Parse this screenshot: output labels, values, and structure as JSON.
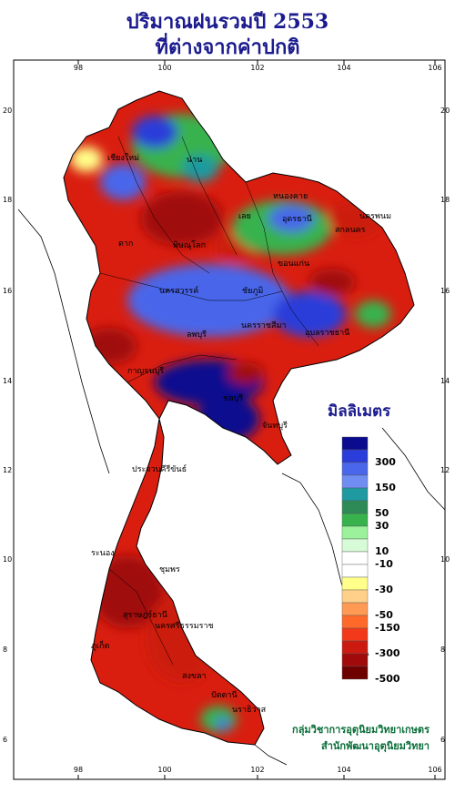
{
  "title": {
    "line1": "ปริมาณฝนรวมปี  2553",
    "line2": "ที่ต่างจากค่าปกติ"
  },
  "axes": {
    "x_ticks": [
      "98",
      "100",
      "102",
      "104",
      "106"
    ],
    "y_ticks": [
      "20",
      "18",
      "16",
      "14",
      "12",
      "10",
      "8",
      "6"
    ]
  },
  "legend": {
    "title": "มิลลิเมตร",
    "labels": [
      "300",
      "150",
      "50",
      "30",
      "10",
      "-10",
      "-30",
      "-50",
      "-150",
      "-300",
      "-500"
    ],
    "colors": [
      "#0b0b8f",
      "#2a3cd9",
      "#4a66ea",
      "#6f8df2",
      "#1e9aa0",
      "#2e8b57",
      "#37b24d",
      "#9bf29b",
      "#d7fbd7",
      "#ffffff",
      "#ffffff",
      "#ffff8a",
      "#ffd08a",
      "#ff9a55",
      "#ff6a2a",
      "#f23a1a",
      "#cc1a10",
      "#a00a0a",
      "#6e0000"
    ]
  },
  "places": [
    "เชียงใหม่",
    "น่าน",
    "เลย",
    "หนองคาย",
    "อุดรธานี",
    "นครพนม",
    "สกลนคร",
    "ขอนแก่น",
    "ชัยภูมิ",
    "นครราชสีมา",
    "อุบลราชธานี",
    "ตาก",
    "พิษณุโลก",
    "นครสวรรค์",
    "ลพบุรี",
    "กาญจนบุรี",
    "ชลบุรี",
    "จันทบุรี",
    "ประจวบคีรีขันธ์",
    "ชุมพร",
    "ระนอง",
    "สุราษฎร์ธานี",
    "นครศรีธรรมราช",
    "ภูเก็ต",
    "สงขลา",
    "ปัตตานี",
    "นราธิวาส"
  ],
  "credit": {
    "line1": "กลุ่มวิชาการอุตุนิยมวิทยาเกษตร",
    "line2": "สำนักพัฒนาอุตุนิยมวิทยา"
  }
}
